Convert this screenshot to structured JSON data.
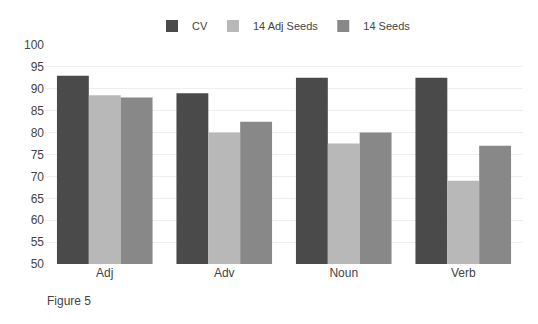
{
  "chart_data": {
    "type": "bar",
    "categories": [
      "Adj",
      "Adv",
      "Noun",
      "Verb"
    ],
    "series": [
      {
        "name": "CV",
        "color": "#4a4a4a",
        "values": [
          93.0,
          89.0,
          92.5,
          92.5
        ]
      },
      {
        "name": "14 Adj Seeds",
        "color": "#b8b8b8",
        "values": [
          88.5,
          80.0,
          77.5,
          69.0
        ]
      },
      {
        "name": "14 Seeds",
        "color": "#888888",
        "values": [
          88.0,
          82.5,
          80.0,
          77.0
        ]
      }
    ],
    "ylim": [
      50,
      100
    ],
    "yticks": [
      50,
      55,
      60,
      65,
      70,
      75,
      80,
      85,
      90,
      95,
      100
    ],
    "grid": true,
    "legend": "top",
    "annotations": [
      "Figure 5"
    ]
  }
}
